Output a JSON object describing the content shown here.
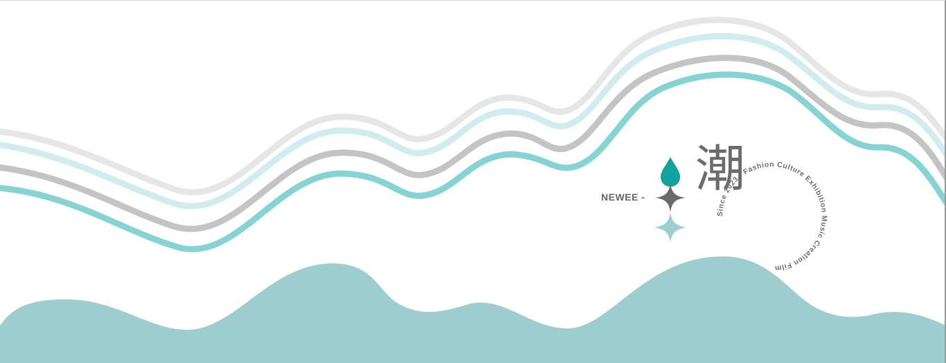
{
  "banner": {
    "brand_label": "NEWEE -",
    "emblem_glyph": "潮",
    "ring_text": "Since 2023 - Fashion Culture Exhibition Music Creation Film",
    "icons": [
      "drop-icon",
      "sparkle-icon",
      "sparkle-icon"
    ]
  },
  "colors": {
    "background": "#ffffff",
    "wave_light_gray": "#e6e6e6",
    "wave_pale_cyan": "#d0ecef",
    "wave_gray": "#c4c4c4",
    "wave_teal": "#86d3d4",
    "hills": "#9dcdce",
    "drop": "#12a49c",
    "sparkle_dark": "#6b6b6b",
    "sparkle_light": "#9ccfd0",
    "text": "#666666"
  }
}
